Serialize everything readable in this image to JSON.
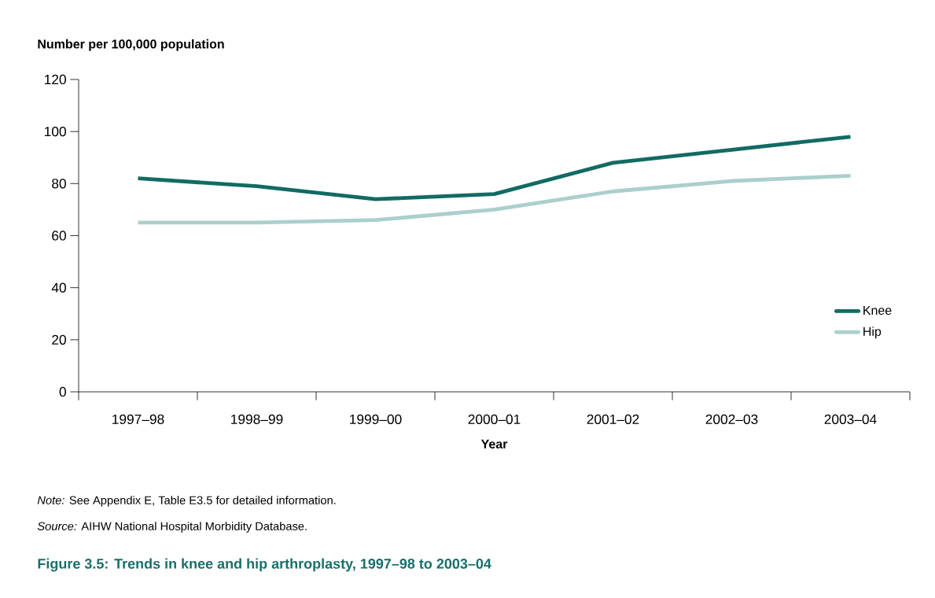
{
  "chart_data": {
    "type": "line",
    "categories": [
      "1997–98",
      "1998–99",
      "1999–00",
      "2000–01",
      "2001–02",
      "2002–03",
      "2003–04"
    ],
    "series": [
      {
        "name": "Knee",
        "color": "#116b64",
        "values": [
          82,
          79,
          74,
          76,
          88,
          93,
          98
        ]
      },
      {
        "name": "Hip",
        "color": "#abcfcc",
        "values": [
          65,
          65,
          66,
          70,
          77,
          81,
          83
        ]
      }
    ],
    "ylabel": "Number per 100,000 population",
    "xlabel": "Year",
    "ylim": [
      0,
      120
    ],
    "yticks": [
      0,
      20,
      40,
      60,
      80,
      100,
      120
    ],
    "legend": "bottom right",
    "grid": false,
    "marker": "none",
    "line_style": "solid",
    "annotations": [
      "*Note:* See Appendix E, Table E3.5 for detailed information.",
      "*Source:* AIHW National Hospital Morbidity Database."
    ],
    "title": "Figure 3.5: Trends in knee and hip arthroplasty, 1997–98 to 2003–04"
  }
}
